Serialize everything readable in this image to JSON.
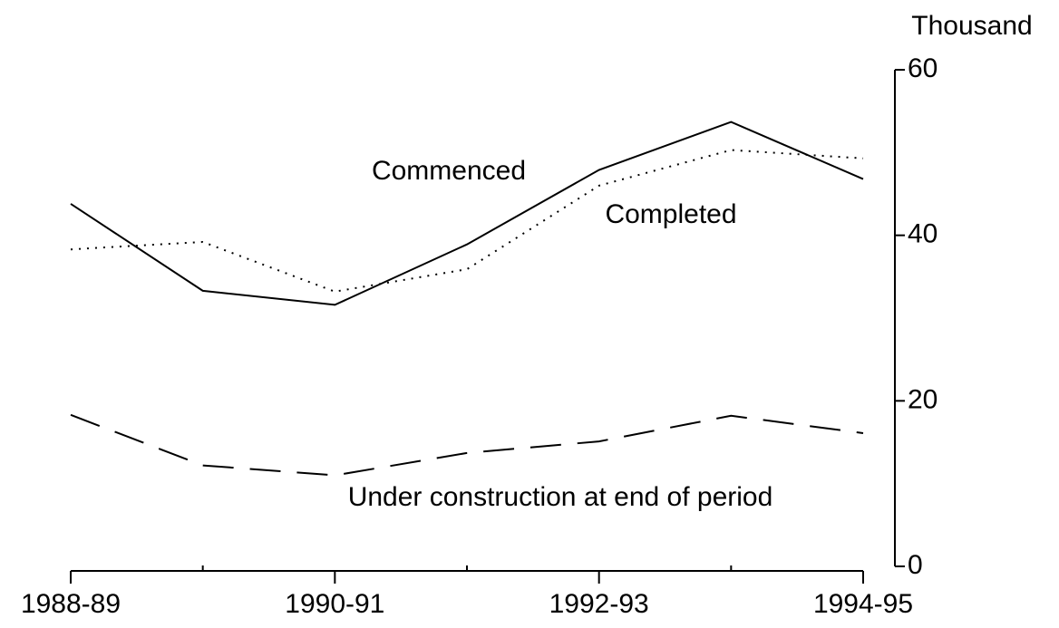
{
  "chart_data": {
    "type": "line",
    "y_axis_label": "Thousand",
    "categories": [
      "1988-89",
      null,
      "1990-91",
      null,
      "1992-93",
      null,
      "1994-95"
    ],
    "series": [
      {
        "name": "Commenced",
        "color": "#000000",
        "dash": "solid",
        "values": [
          43.8,
          33.3,
          31.6,
          38.9,
          47.9,
          53.7,
          46.8
        ]
      },
      {
        "name": "Completed",
        "color": "#000000",
        "dash": "dotted",
        "values": [
          38.3,
          39.2,
          33.2,
          35.9,
          46.0,
          50.3,
          49.3
        ]
      },
      {
        "name": "Under construction at end of period",
        "color": "#000000",
        "dash": "dashed",
        "values": [
          18.3,
          12.2,
          11.0,
          13.7,
          15.1,
          18.2,
          16.1
        ]
      }
    ],
    "ylim": [
      0,
      60
    ],
    "yticks": [
      0,
      20,
      40,
      60
    ],
    "y_axis_side": "right",
    "grid": false
  }
}
